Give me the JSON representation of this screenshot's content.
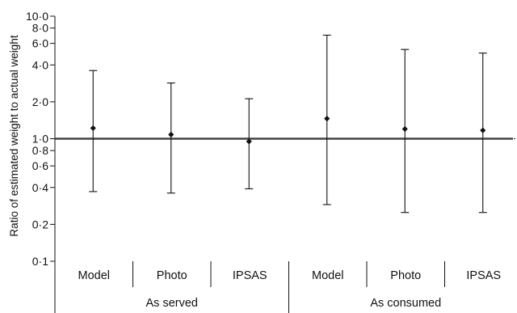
{
  "chart_data": {
    "type": "scatter",
    "ylabel": "Ratio of estimated weight to actual weight",
    "y_scale": "log",
    "ylim": [
      0.1,
      10.0
    ],
    "y_ticks": [
      {
        "value": 10.0,
        "label": "10·0"
      },
      {
        "value": 8.0,
        "label": "8·0"
      },
      {
        "value": 6.0,
        "label": "6·0"
      },
      {
        "value": 4.0,
        "label": "4·0"
      },
      {
        "value": 2.0,
        "label": "2·0"
      },
      {
        "value": 1.0,
        "label": "1·0"
      },
      {
        "value": 0.8,
        "label": "0·8"
      },
      {
        "value": 0.6,
        "label": "0·6"
      },
      {
        "value": 0.4,
        "label": "0·4"
      },
      {
        "value": 0.2,
        "label": "0·2"
      },
      {
        "value": 0.1,
        "label": "0·1"
      }
    ],
    "reference_line": 1.0,
    "groups": [
      "As served",
      "As consumed"
    ],
    "categories": [
      "Model",
      "Photo",
      "IPSAS",
      "Model",
      "Photo",
      "IPSAS"
    ],
    "category_group": [
      0,
      0,
      0,
      1,
      1,
      1
    ],
    "points": [
      {
        "mean": 1.22,
        "lower": 0.37,
        "upper": 3.6
      },
      {
        "mean": 1.08,
        "lower": 0.36,
        "upper": 2.85
      },
      {
        "mean": 0.95,
        "lower": 0.39,
        "upper": 2.12
      },
      {
        "mean": 1.46,
        "lower": 0.29,
        "upper": 7.0
      },
      {
        "mean": 1.2,
        "lower": 0.25,
        "upper": 5.35
      },
      {
        "mean": 1.17,
        "lower": 0.25,
        "upper": 5.0
      }
    ],
    "grid": false,
    "legend": "none"
  }
}
